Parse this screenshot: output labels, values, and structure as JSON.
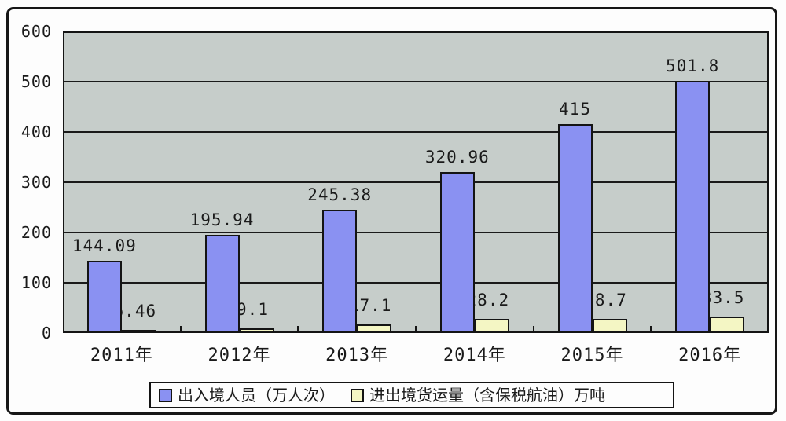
{
  "chart_data": {
    "type": "bar",
    "title": "",
    "xlabel": "",
    "ylabel": "",
    "categories": [
      "2011年",
      "2012年",
      "2013年",
      "2014年",
      "2015年",
      "2016年"
    ],
    "series": [
      {
        "name": "出入境人员（万人次）",
        "color": "#8a91f2",
        "values": [
          144.09,
          195.94,
          245.38,
          320.96,
          415,
          501.8
        ],
        "labels": [
          "144.09",
          "195.94",
          "245.38",
          "320.96",
          "415",
          "501.8"
        ]
      },
      {
        "name": "进出境货运量（含保税航油）万吨",
        "color": "#f4f6c4",
        "values": [
          6.46,
          9.1,
          17.1,
          28.2,
          28.7,
          33.5
        ],
        "labels": [
          "6.46",
          "9.1",
          "17.1",
          "28.2",
          "28.7",
          "33.5"
        ]
      }
    ],
    "y_ticks": [
      0,
      100,
      200,
      300,
      400,
      500,
      600
    ],
    "ylim": [
      0,
      600
    ],
    "grid": true,
    "legend_position": "bottom",
    "plot_background": "#c6cdca",
    "gridline_color": "#1a1a1a"
  }
}
